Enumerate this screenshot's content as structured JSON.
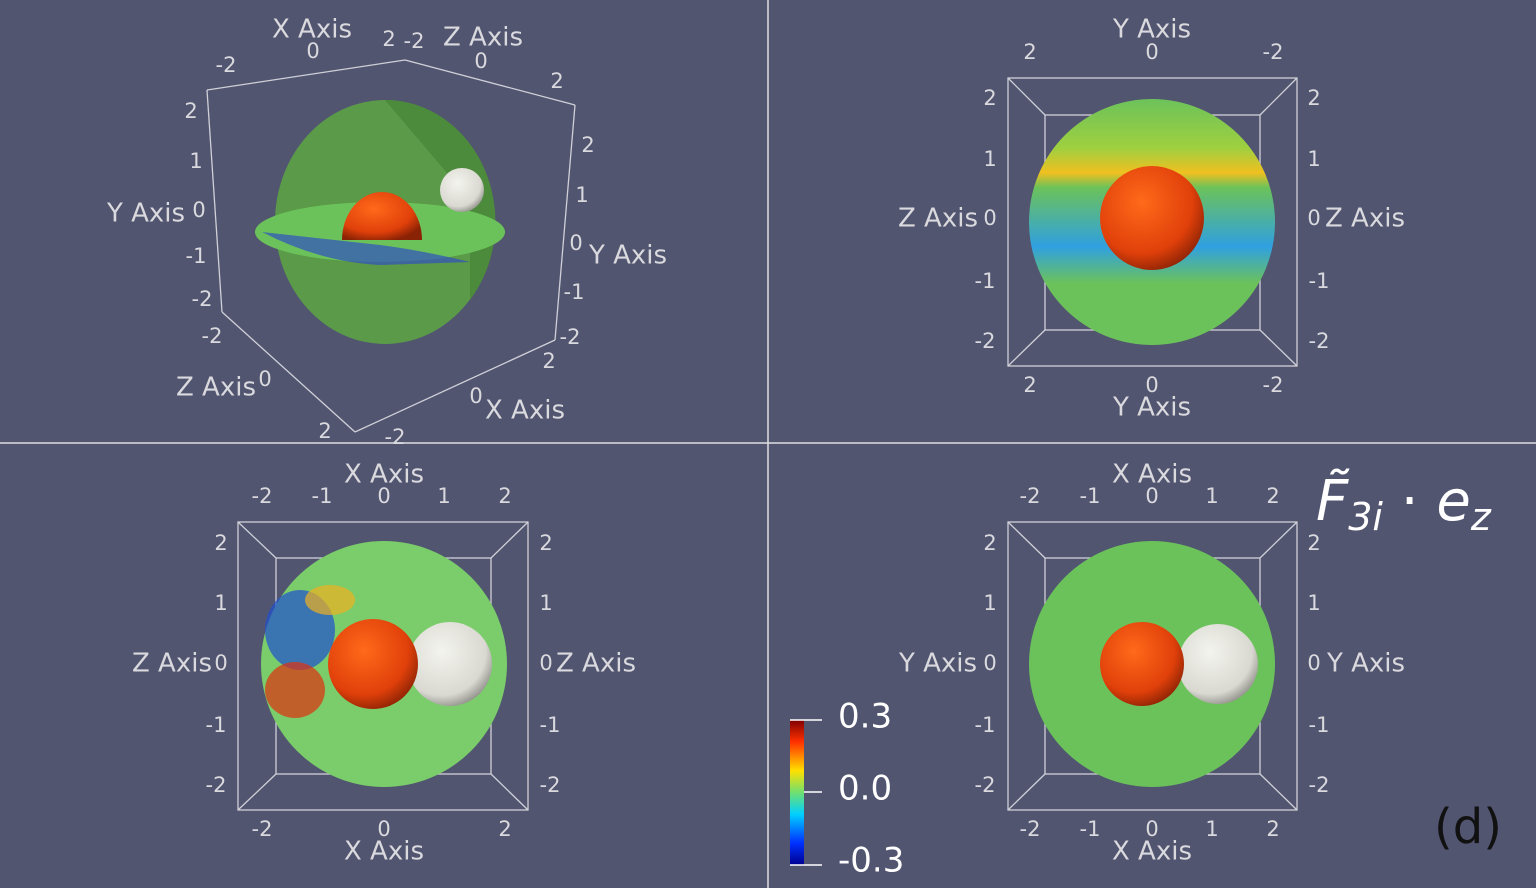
{
  "views": [
    {
      "labels": [
        "X Axis",
        "0",
        "2",
        "-2",
        "-2",
        "Z Axis",
        "0",
        "2",
        "2",
        "1",
        "0",
        "Y Axis",
        "-1",
        "-2",
        "2",
        "1",
        "Y Axis",
        "0",
        "-1",
        "-2",
        "-2",
        "Z Axis",
        "0",
        "2",
        "-2",
        "0",
        "X Axis",
        "2"
      ]
    },
    {
      "labels": [
        "Y Axis",
        "2",
        "0",
        "-2",
        "2",
        "1",
        "0",
        "Z Axis",
        "-1",
        "-2",
        "2",
        "1",
        "Z Axis",
        "0",
        "-1",
        "-2",
        "2",
        "0",
        "-2",
        "Y Axis"
      ]
    },
    {
      "labels": [
        "X Axis",
        "-2",
        "-1",
        "0",
        "1",
        "2",
        "2",
        "1",
        "Z Axis",
        "0",
        "-1",
        "-2",
        "2",
        "1",
        "0",
        "Z Axis",
        "-1",
        "-2",
        "-2",
        "0",
        "2",
        "X Axis"
      ]
    },
    {
      "labels": [
        "X Axis",
        "-2",
        "-1",
        "0",
        "1",
        "2",
        "2",
        "1",
        "Y Axis",
        "0",
        "-1",
        "-2",
        "2",
        "1",
        "0",
        "Y Axis",
        "-1",
        "-2",
        "-2",
        "-1",
        "0",
        "1",
        "2",
        "X Axis"
      ]
    }
  ],
  "colorbar": {
    "max": "0.3",
    "mid": "0.0",
    "min": "-0.3"
  },
  "annotation": {
    "symbol": "F̃",
    "symbol_sub": "3i",
    "operator": " · ",
    "vector": "e",
    "vector_sub": "z"
  },
  "panel_label": "(d)"
}
